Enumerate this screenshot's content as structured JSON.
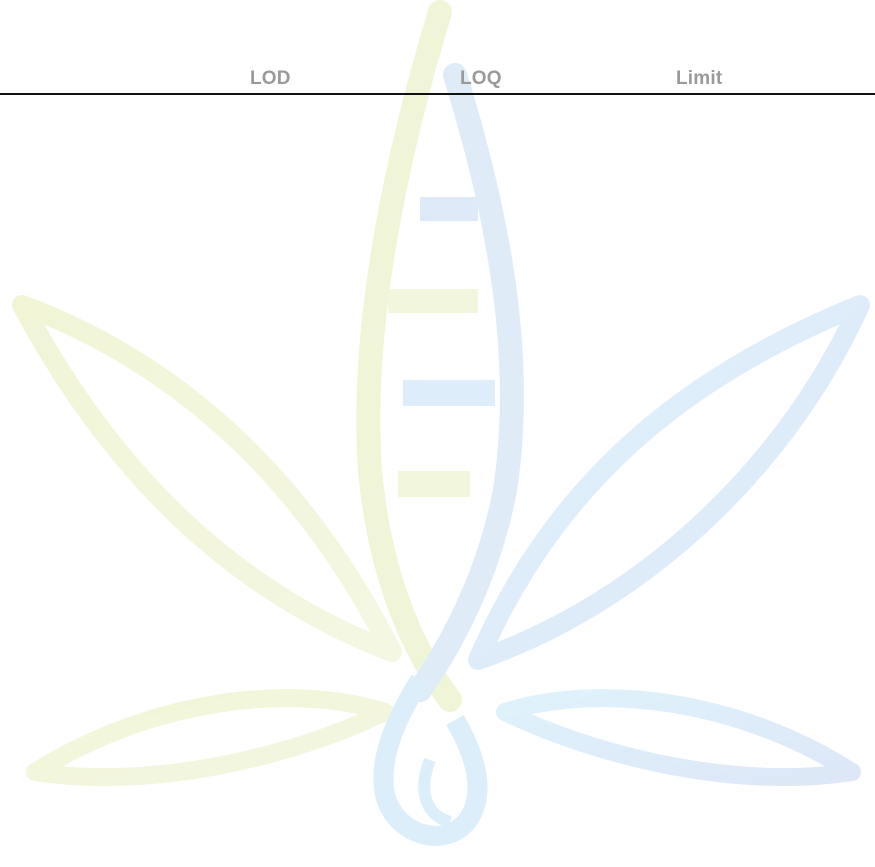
{
  "table": {
    "headers": {
      "lod": "LOD",
      "loq": "LOQ",
      "limit": "Limit"
    }
  },
  "watermark": {
    "icon": "cannabis-leaf-droplet-logo",
    "colors": {
      "left": "#f2f6dc",
      "right": "#ddeefa",
      "accent_blue": "#dce6f6"
    }
  }
}
